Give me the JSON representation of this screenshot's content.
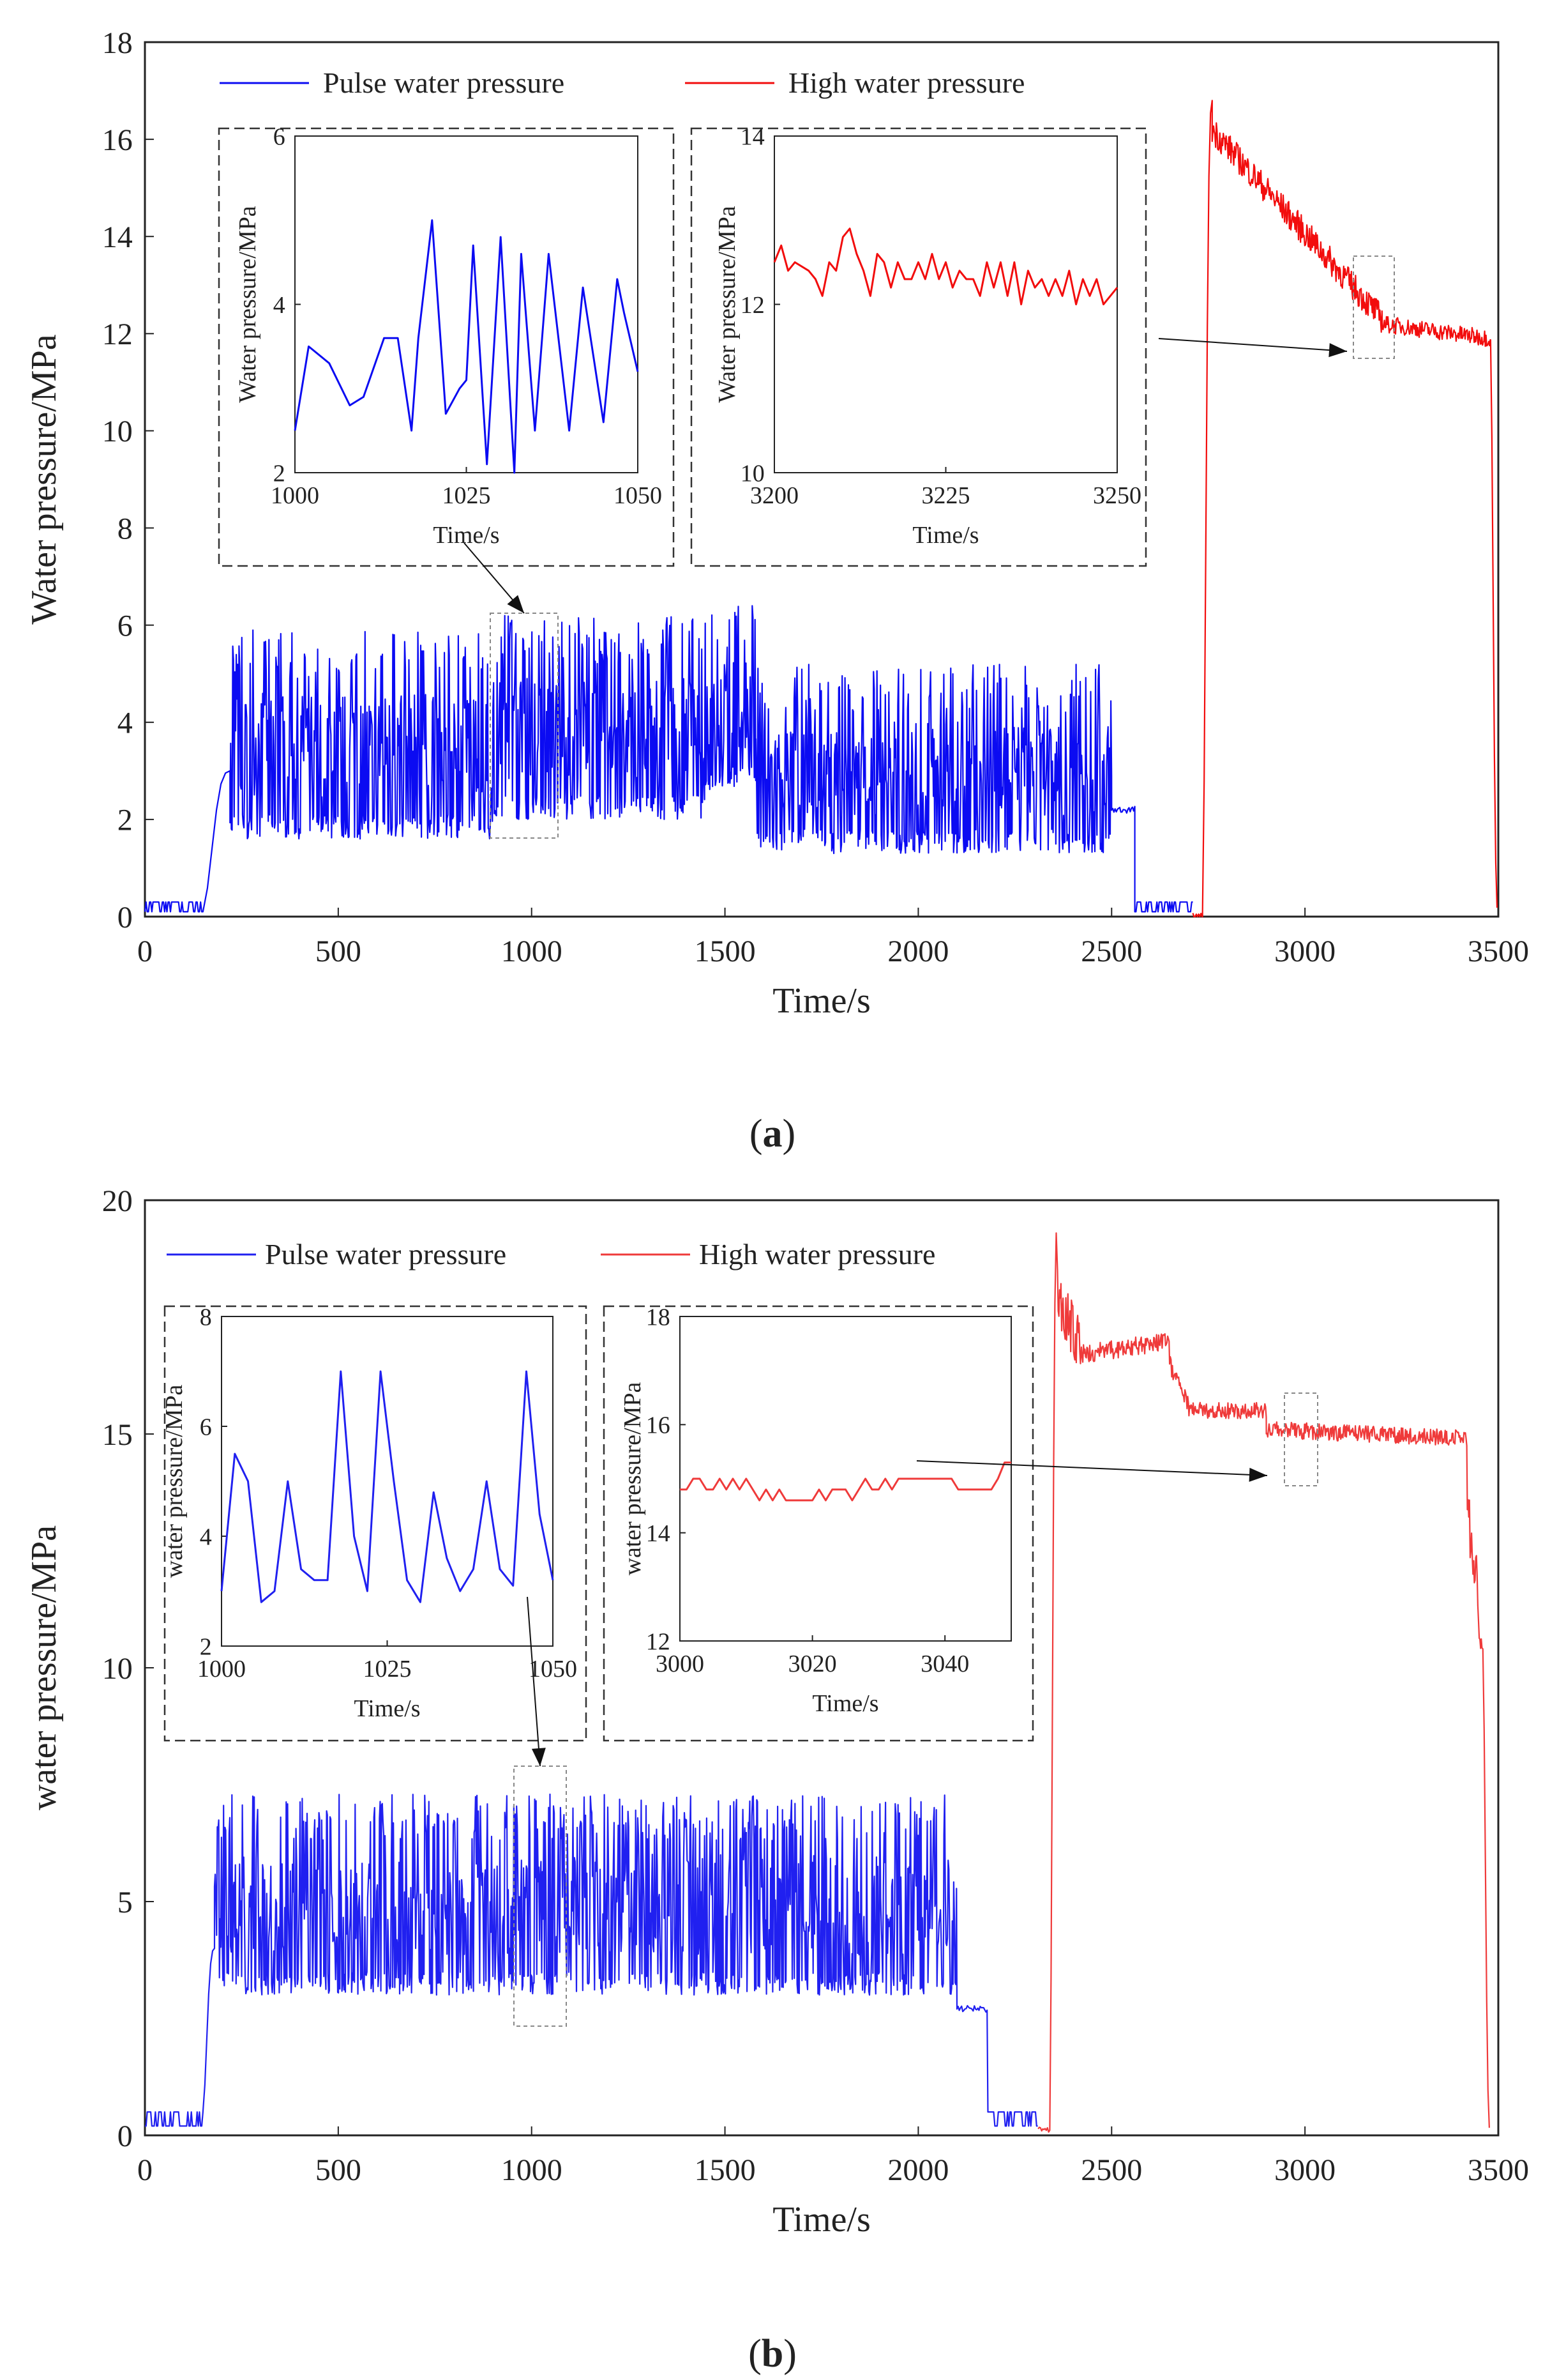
{
  "chart_data": [
    {
      "id": "a",
      "type": "line",
      "caption_open": "(",
      "caption_letter": "a",
      "caption_close": ")",
      "xlabel": "Time/s",
      "ylabel": "Water pressure/MPa",
      "xlim": [
        0,
        3500
      ],
      "ylim": [
        0,
        18
      ],
      "xticks": [
        0,
        500,
        1000,
        1500,
        2000,
        2500,
        3000,
        3500
      ],
      "yticks": [
        0,
        2,
        4,
        6,
        8,
        10,
        12,
        14,
        16,
        18
      ],
      "legend_placement": "top",
      "series": [
        {
          "name": "Pulse water pressure",
          "color": "#0b0bf2",
          "segments": [
            {
              "t0": 0,
              "t1": 150,
              "base": 0.1,
              "amp": 0.2,
              "period": 6,
              "mode": "low"
            },
            {
              "t0": 150,
              "t1": 220,
              "ramp_to": 3.0,
              "mode": "ramp"
            },
            {
              "t0": 220,
              "t1": 900,
              "low": 1.6,
              "high": 5.9,
              "mode": "pulse"
            },
            {
              "t0": 900,
              "t1": 1450,
              "low": 2.0,
              "high": 6.2,
              "mode": "pulse"
            },
            {
              "t0": 1450,
              "t1": 1580,
              "low": 2.6,
              "high": 6.4,
              "mode": "pulse"
            },
            {
              "t0": 1580,
              "t1": 2500,
              "low": 1.3,
              "high": 5.2,
              "mode": "pulse"
            },
            {
              "t0": 2500,
              "t1": 2560,
              "base": 2.2,
              "mode": "flat"
            },
            {
              "t0": 2560,
              "t1": 2710,
              "base": 0.1,
              "amp": 0.2,
              "period": 6,
              "mode": "low"
            }
          ]
        },
        {
          "name": "High water pressure",
          "color": "#f20d0d",
          "segments": [
            {
              "t0": 2710,
              "t1": 2735,
              "base": 0.0,
              "mode": "flat"
            },
            {
              "t0": 2735,
              "t1": 2760,
              "ramp_to": 16.8,
              "mode": "ramp"
            },
            {
              "t0": 2760,
              "t1": 3200,
              "from": 16.2,
              "to": 12.3,
              "noise": 0.6,
              "mode": "decay"
            },
            {
              "t0": 3200,
              "t1": 3480,
              "from": 12.2,
              "to": 11.9,
              "noise": 0.35,
              "mode": "decay"
            },
            {
              "t0": 3480,
              "t1": 3500,
              "ramp_to": 0.0,
              "mode": "ramp"
            }
          ]
        }
      ],
      "insets": [
        {
          "xlabel": "Time/s",
          "ylabel": "Water pressure/MPa",
          "xlim": [
            1000,
            1050
          ],
          "ylim": [
            2,
            6
          ],
          "xticks": [
            1000,
            1025,
            1050
          ],
          "yticks": [
            2,
            4,
            6
          ],
          "color": "#0b0bf2",
          "x": [
            1000,
            1002,
            1005,
            1008,
            1010,
            1013,
            1015,
            1017,
            1018,
            1020,
            1022,
            1024,
            1025,
            1026,
            1028,
            1030,
            1032,
            1033,
            1035,
            1037,
            1040,
            1042,
            1045,
            1047,
            1048,
            1050
          ],
          "y": [
            2.5,
            3.5,
            3.3,
            2.8,
            2.9,
            3.6,
            3.6,
            2.5,
            3.6,
            5.0,
            2.7,
            3.0,
            3.1,
            4.7,
            2.1,
            4.8,
            2.0,
            4.6,
            2.5,
            4.6,
            2.5,
            4.2,
            2.6,
            4.3,
            3.9,
            3.2
          ]
        },
        {
          "xlabel": "Time/s",
          "ylabel": "Water pressure/MPa",
          "xlim": [
            3200,
            3250
          ],
          "ylim": [
            10,
            14
          ],
          "xticks": [
            3200,
            3225,
            3250
          ],
          "yticks": [
            10,
            12,
            14
          ],
          "color": "#f20d0d",
          "x": [
            3200,
            3201,
            3202,
            3203,
            3205,
            3206,
            3207,
            3208,
            3209,
            3210,
            3211,
            3212,
            3213,
            3214,
            3215,
            3216,
            3217,
            3218,
            3219,
            3220,
            3221,
            3222,
            3223,
            3224,
            3225,
            3226,
            3227,
            3228,
            3229,
            3230,
            3231,
            3232,
            3233,
            3234,
            3235,
            3236,
            3237,
            3238,
            3239,
            3240,
            3241,
            3242,
            3243,
            3244,
            3245,
            3246,
            3247,
            3248,
            3249,
            3250
          ],
          "y": [
            12.5,
            12.7,
            12.4,
            12.5,
            12.4,
            12.3,
            12.1,
            12.5,
            12.4,
            12.8,
            12.9,
            12.6,
            12.4,
            12.1,
            12.6,
            12.5,
            12.2,
            12.5,
            12.3,
            12.3,
            12.5,
            12.3,
            12.6,
            12.3,
            12.5,
            12.2,
            12.4,
            12.3,
            12.3,
            12.1,
            12.5,
            12.2,
            12.5,
            12.1,
            12.5,
            12.0,
            12.4,
            12.2,
            12.3,
            12.1,
            12.3,
            12.1,
            12.4,
            12.0,
            12.3,
            12.1,
            12.3,
            12.0,
            12.1,
            12.2
          ]
        }
      ]
    },
    {
      "id": "b",
      "type": "line",
      "caption_open": "(",
      "caption_letter": "b",
      "caption_close": ")",
      "xlabel": "Time/s",
      "ylabel": "water pressure/MPa",
      "xlim": [
        0,
        3500
      ],
      "ylim": [
        0,
        20
      ],
      "xticks": [
        0,
        500,
        1000,
        1500,
        2000,
        2500,
        3000,
        3500
      ],
      "yticks": [
        0,
        5,
        10,
        15,
        20
      ],
      "legend_placement": "top",
      "series": [
        {
          "name": "Pulse water pressure",
          "color": "#2020f0",
          "segments": [
            {
              "t0": 0,
              "t1": 150,
              "base": 0.2,
              "amp": 0.3,
              "period": 6,
              "mode": "low"
            },
            {
              "t0": 150,
              "t1": 180,
              "ramp_to": 4.0,
              "mode": "ramp"
            },
            {
              "t0": 180,
              "t1": 2100,
              "low": 3.0,
              "high": 7.3,
              "mode": "pulse"
            },
            {
              "t0": 2100,
              "t1": 2180,
              "base": 2.7,
              "mode": "flat"
            },
            {
              "t0": 2180,
              "t1": 2310,
              "base": 0.2,
              "amp": 0.3,
              "period": 6,
              "mode": "low"
            }
          ]
        },
        {
          "name": "High water pressure",
          "color": "#ef3a3a",
          "segments": [
            {
              "t0": 2310,
              "t1": 2340,
              "base": 0.1,
              "mode": "flat"
            },
            {
              "t0": 2340,
              "t1": 2360,
              "ramp_to": 19.6,
              "mode": "ramp"
            },
            {
              "t0": 2360,
              "t1": 2420,
              "from": 18.0,
              "to": 16.8,
              "noise": 1.2,
              "mode": "decay"
            },
            {
              "t0": 2420,
              "t1": 2650,
              "from": 16.7,
              "to": 17.0,
              "noise": 0.4,
              "mode": "decay"
            },
            {
              "t0": 2650,
              "t1": 2700,
              "from": 16.5,
              "to": 15.6,
              "noise": 0.4,
              "mode": "decay"
            },
            {
              "t0": 2700,
              "t1": 2900,
              "from": 15.5,
              "to": 15.5,
              "noise": 0.35,
              "mode": "decay"
            },
            {
              "t0": 2900,
              "t1": 3420,
              "from": 15.1,
              "to": 14.9,
              "noise": 0.35,
              "mode": "decay"
            },
            {
              "t0": 3420,
              "t1": 3460,
              "from": 13.5,
              "to": 10.5,
              "noise": 1.5,
              "mode": "decay"
            },
            {
              "t0": 3460,
              "t1": 3480,
              "ramp_to": 0.0,
              "mode": "ramp"
            }
          ]
        }
      ],
      "insets": [
        {
          "xlabel": "Time/s",
          "ylabel": "water pressure/MPa",
          "xlim": [
            1000,
            1050
          ],
          "ylim": [
            2,
            8
          ],
          "xticks": [
            1000,
            1025,
            1050
          ],
          "yticks": [
            2,
            4,
            6,
            8
          ],
          "color": "#2020f0",
          "x": [
            1000,
            1002,
            1004,
            1006,
            1008,
            1010,
            1012,
            1014,
            1016,
            1018,
            1020,
            1022,
            1024,
            1026,
            1028,
            1030,
            1032,
            1034,
            1036,
            1038,
            1040,
            1042,
            1044,
            1046,
            1048,
            1050
          ],
          "y": [
            3.0,
            5.5,
            5.0,
            2.8,
            3.0,
            5.0,
            3.4,
            3.2,
            3.2,
            7.0,
            4.0,
            3.0,
            7.0,
            5.0,
            3.2,
            2.8,
            4.8,
            3.6,
            3.0,
            3.4,
            5.0,
            3.4,
            3.1,
            7.0,
            4.4,
            3.2
          ]
        },
        {
          "xlabel": "Time/s",
          "ylabel": "water pressure/MPa",
          "xlim": [
            3000,
            3050
          ],
          "ylim": [
            12,
            18
          ],
          "xticks": [
            3000,
            3020,
            3040
          ],
          "yticks": [
            12,
            14,
            16,
            18
          ],
          "color": "#ef3a3a",
          "x": [
            3000,
            3001,
            3002,
            3003,
            3004,
            3005,
            3006,
            3007,
            3008,
            3009,
            3010,
            3011,
            3012,
            3013,
            3014,
            3015,
            3016,
            3017,
            3018,
            3019,
            3020,
            3021,
            3022,
            3023,
            3024,
            3025,
            3026,
            3027,
            3028,
            3029,
            3030,
            3031,
            3032,
            3033,
            3034,
            3035,
            3036,
            3037,
            3038,
            3039,
            3040,
            3041,
            3042,
            3043,
            3044,
            3045,
            3046,
            3047,
            3048,
            3049,
            3050
          ],
          "y": [
            14.8,
            14.8,
            15.0,
            15.0,
            14.8,
            14.8,
            15.0,
            14.8,
            15.0,
            14.8,
            15.0,
            14.8,
            14.6,
            14.8,
            14.6,
            14.8,
            14.6,
            14.6,
            14.6,
            14.6,
            14.6,
            14.8,
            14.6,
            14.8,
            14.8,
            14.8,
            14.6,
            14.8,
            15.0,
            14.8,
            14.8,
            15.0,
            14.8,
            15.0,
            15.0,
            15.0,
            15.0,
            15.0,
            15.0,
            15.0,
            15.0,
            15.0,
            14.8,
            14.8,
            14.8,
            14.8,
            14.8,
            14.8,
            15.0,
            15.3,
            15.3
          ]
        }
      ]
    }
  ]
}
